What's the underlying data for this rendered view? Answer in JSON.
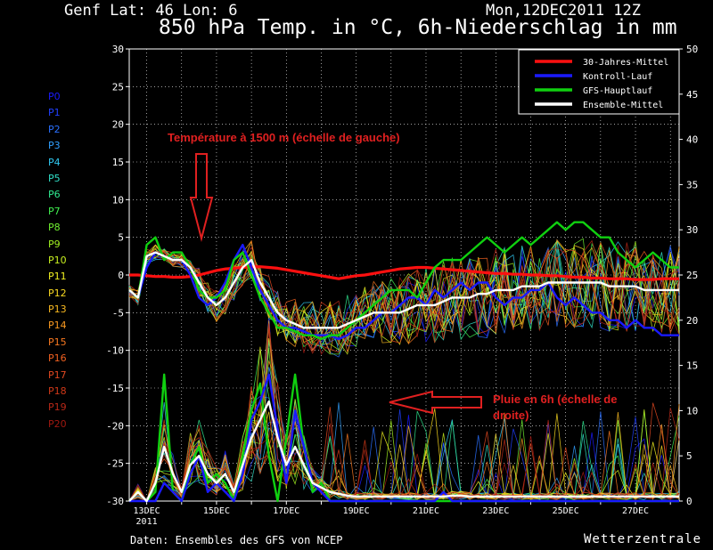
{
  "header": {
    "location": "Genf   Lat: 46 Lon: 6",
    "run": "Mon,12DEC2011 12Z",
    "title": "850 hPa Temp. in °C, 6h-Niederschlag in mm"
  },
  "footer": {
    "source": "Daten: Ensembles des GFS von NCEP",
    "brand": "Wetterzentrale"
  },
  "members": [
    {
      "name": "P0",
      "color": "#1a1aff"
    },
    {
      "name": "P1",
      "color": "#2040ff"
    },
    {
      "name": "P2",
      "color": "#2a70ff"
    },
    {
      "name": "P3",
      "color": "#30a0ff"
    },
    {
      "name": "P4",
      "color": "#30c8f0"
    },
    {
      "name": "P5",
      "color": "#30e0c8"
    },
    {
      "name": "P6",
      "color": "#30e890"
    },
    {
      "name": "P7",
      "color": "#40f050"
    },
    {
      "name": "P8",
      "color": "#70f030"
    },
    {
      "name": "P9",
      "color": "#a0f020"
    },
    {
      "name": "P10",
      "color": "#c8f020"
    },
    {
      "name": "P11",
      "color": "#f0f020"
    },
    {
      "name": "P12",
      "color": "#f8d820"
    },
    {
      "name": "P13",
      "color": "#f8b820"
    },
    {
      "name": "P14",
      "color": "#f89820"
    },
    {
      "name": "P15",
      "color": "#f87820"
    },
    {
      "name": "P16",
      "color": "#f06020"
    },
    {
      "name": "P17",
      "color": "#e04820"
    },
    {
      "name": "P18",
      "color": "#d03818"
    },
    {
      "name": "P19",
      "color": "#b82818"
    },
    {
      "name": "P20",
      "color": "#a01810"
    }
  ],
  "annotations": {
    "temp_note": "Température à 1500 m (échelle de gauche)",
    "rain_note_line1": "Pluie en 6h (échelle de",
    "rain_note_line2": "droite)"
  },
  "chart_data": {
    "type": "line",
    "x_tick_labels": [
      "13DEC",
      "15DEC",
      "17DEC",
      "19DEC",
      "21DEC",
      "23DEC",
      "25DEC",
      "27DEC"
    ],
    "x_first_year": "2011",
    "x": [
      12.5,
      12.75,
      13.0,
      13.25,
      13.5,
      13.75,
      14.0,
      14.25,
      14.5,
      14.75,
      15.0,
      15.25,
      15.5,
      15.75,
      16.0,
      16.25,
      16.5,
      16.75,
      17.0,
      17.25,
      17.5,
      17.75,
      18.0,
      18.25,
      18.5,
      18.75,
      19.0,
      19.25,
      19.5,
      19.75,
      20.0,
      20.25,
      20.5,
      20.75,
      21.0,
      21.25,
      21.5,
      21.75,
      22.0,
      22.25,
      22.5,
      22.75,
      23.0,
      23.25,
      23.5,
      23.75,
      24.0,
      24.25,
      24.5,
      24.75,
      25.0,
      25.25,
      25.5,
      25.75,
      26.0,
      26.25,
      26.5,
      26.75,
      27.0,
      27.25,
      27.5,
      27.75,
      28.0,
      28.25
    ],
    "x_range": [
      12.5,
      28.25
    ],
    "y_left": {
      "range": [
        -30,
        30
      ],
      "ticks": [
        -30,
        -25,
        -20,
        -15,
        -10,
        -5,
        0,
        5,
        10,
        15,
        20,
        25,
        30
      ],
      "unit": "°C"
    },
    "y_right": {
      "range": [
        0,
        50
      ],
      "ticks": [
        0,
        5,
        10,
        15,
        20,
        25,
        30,
        35,
        40,
        45,
        50
      ],
      "unit": "mm"
    },
    "legend": {
      "position": "top-right",
      "entries": [
        {
          "label": "30-Jahres-Mittel",
          "color": "#ff1010"
        },
        {
          "label": "Kontroll-Lauf",
          "color": "#1a1aff"
        },
        {
          "label": "GFS-Hauptlauf",
          "color": "#10d010"
        },
        {
          "label": "Ensemble-Mittel",
          "color": "#ffffff"
        }
      ]
    },
    "grid": "dotted",
    "series_temperature": [
      {
        "name": "30-Jahres-Mittel",
        "axis": "left",
        "color": "#ff1010",
        "values": [
          0,
          0,
          -0.1,
          -0.2,
          -0.2,
          -0.3,
          -0.3,
          -0.2,
          0,
          0.3,
          0.6,
          0.8,
          0.9,
          1.0,
          1.1,
          1.1,
          1.0,
          0.9,
          0.7,
          0.5,
          0.3,
          0.1,
          -0.1,
          -0.3,
          -0.5,
          -0.3,
          -0.1,
          0,
          0.2,
          0.4,
          0.6,
          0.8,
          0.9,
          1.0,
          1.0,
          0.9,
          0.8,
          0.7,
          0.6,
          0.5,
          0.4,
          0.3,
          0.2,
          0.2,
          0.1,
          0.1,
          0,
          0,
          -0.1,
          -0.1,
          -0.2,
          -0.3,
          -0.3,
          -0.4,
          -0.4,
          -0.5,
          -0.5,
          -0.5,
          -0.6,
          -0.6,
          -0.6,
          -0.5,
          -0.5,
          -0.5
        ]
      },
      {
        "name": "Kontroll-Lauf",
        "axis": "left",
        "color": "#1a1aff",
        "values": [
          -2,
          -3,
          1,
          3,
          2.5,
          2,
          2,
          0,
          -3,
          -4,
          -3,
          -1,
          2,
          4,
          1,
          -2,
          -4,
          -6,
          -7,
          -7,
          -7.5,
          -8,
          -8,
          -8,
          -8.5,
          -8,
          -7,
          -7,
          -6,
          -5,
          -5,
          -4,
          -3,
          -3,
          -4,
          -2,
          -3,
          -2,
          -1,
          -2,
          -1,
          -1,
          -3,
          -4,
          -3,
          -3,
          -2,
          -2,
          -1,
          -3,
          -4,
          -3,
          -4,
          -5,
          -5,
          -6,
          -6,
          -7,
          -6,
          -7,
          -7,
          -8,
          -8,
          -8
        ]
      },
      {
        "name": "GFS-Hauptlauf",
        "axis": "left",
        "color": "#10d010",
        "values": [
          -2,
          -3,
          4,
          5,
          2,
          3,
          3,
          1,
          -2,
          -3,
          -3,
          -2,
          2,
          3,
          0,
          -3,
          -5,
          -7,
          -7,
          -7.5,
          -8,
          -8,
          -8.5,
          -8,
          -8,
          -7,
          -6,
          -5,
          -4,
          -3,
          -2,
          -2,
          -2,
          -3,
          -1,
          1,
          2,
          2,
          2,
          3,
          4,
          5,
          4,
          3,
          4,
          5,
          4,
          5,
          6,
          7,
          6,
          7,
          7,
          6,
          5,
          5,
          3,
          2,
          1,
          2,
          3,
          2,
          1,
          1
        ]
      },
      {
        "name": "Ensemble-Mittel",
        "axis": "left",
        "color": "#ffffff",
        "values": [
          -2,
          -3,
          2.5,
          3,
          2.5,
          2,
          2,
          1,
          -1,
          -3,
          -4,
          -3,
          -1,
          1,
          2,
          -1,
          -3,
          -5,
          -6,
          -6.5,
          -7,
          -7,
          -7,
          -7,
          -7,
          -6.5,
          -6,
          -5.5,
          -5,
          -5,
          -5,
          -5,
          -4.5,
          -4,
          -4,
          -4,
          -3.5,
          -3,
          -3,
          -3,
          -2.5,
          -2.5,
          -2,
          -2,
          -2,
          -1.5,
          -1.5,
          -1.5,
          -1,
          -1,
          -1,
          -1,
          -1,
          -1,
          -1,
          -1.5,
          -1.5,
          -1.5,
          -1.5,
          -2,
          -2,
          -2,
          -2,
          -2
        ]
      }
    ],
    "series_precip": [
      {
        "name": "GFS-Hauptlauf",
        "axis": "right",
        "color": "#10d010",
        "values": [
          0,
          1,
          0,
          1,
          14,
          1,
          0,
          4,
          6,
          2,
          3,
          2,
          0,
          5,
          10,
          13,
          5,
          0,
          7,
          14,
          6,
          1,
          2,
          0,
          0,
          0,
          0,
          0,
          0,
          0,
          0,
          0,
          0,
          0,
          0,
          0,
          0,
          0,
          0,
          0,
          0,
          0,
          0,
          0,
          0,
          0,
          0,
          0,
          0,
          0,
          0,
          0,
          0,
          0,
          0,
          0,
          0,
          0,
          0,
          0,
          0,
          0,
          0,
          0
        ]
      },
      {
        "name": "Kontroll-Lauf",
        "axis": "right",
        "color": "#1a1aff",
        "values": [
          0,
          0,
          0,
          0,
          2,
          1,
          0,
          3,
          5,
          1,
          2,
          1,
          0,
          3,
          9,
          11,
          14,
          8,
          2,
          10,
          6,
          2,
          1,
          0,
          0,
          0,
          0,
          0,
          0,
          0,
          0,
          0,
          0,
          0,
          0,
          0,
          1,
          0,
          0,
          0,
          0,
          0,
          0,
          0,
          0,
          0,
          0,
          0,
          0,
          0,
          0,
          0,
          0,
          0,
          0,
          0,
          0,
          0,
          0,
          0,
          0,
          0,
          0,
          0
        ]
      },
      {
        "name": "Ensemble-Mittel",
        "axis": "right",
        "color": "#ffffff",
        "values": [
          0,
          1,
          0,
          2,
          6,
          3,
          1,
          4,
          5,
          3,
          2,
          3,
          1,
          4,
          7,
          9,
          11,
          7,
          4,
          6,
          4,
          2,
          1.5,
          1,
          0.8,
          0.6,
          0.5,
          0.5,
          0.5,
          0.5,
          0.5,
          0.5,
          0.5,
          0.5,
          0.5,
          0.5,
          0.5,
          0.6,
          0.6,
          0.5,
          0.5,
          0.5,
          0.5,
          0.5,
          0.5,
          0.5,
          0.5,
          0.5,
          0.5,
          0.5,
          0.5,
          0.5,
          0.5,
          0.5,
          0.5,
          0.5,
          0.5,
          0.5,
          0.5,
          0.5,
          0.5,
          0.5,
          0.5,
          0.5
        ]
      }
    ]
  }
}
